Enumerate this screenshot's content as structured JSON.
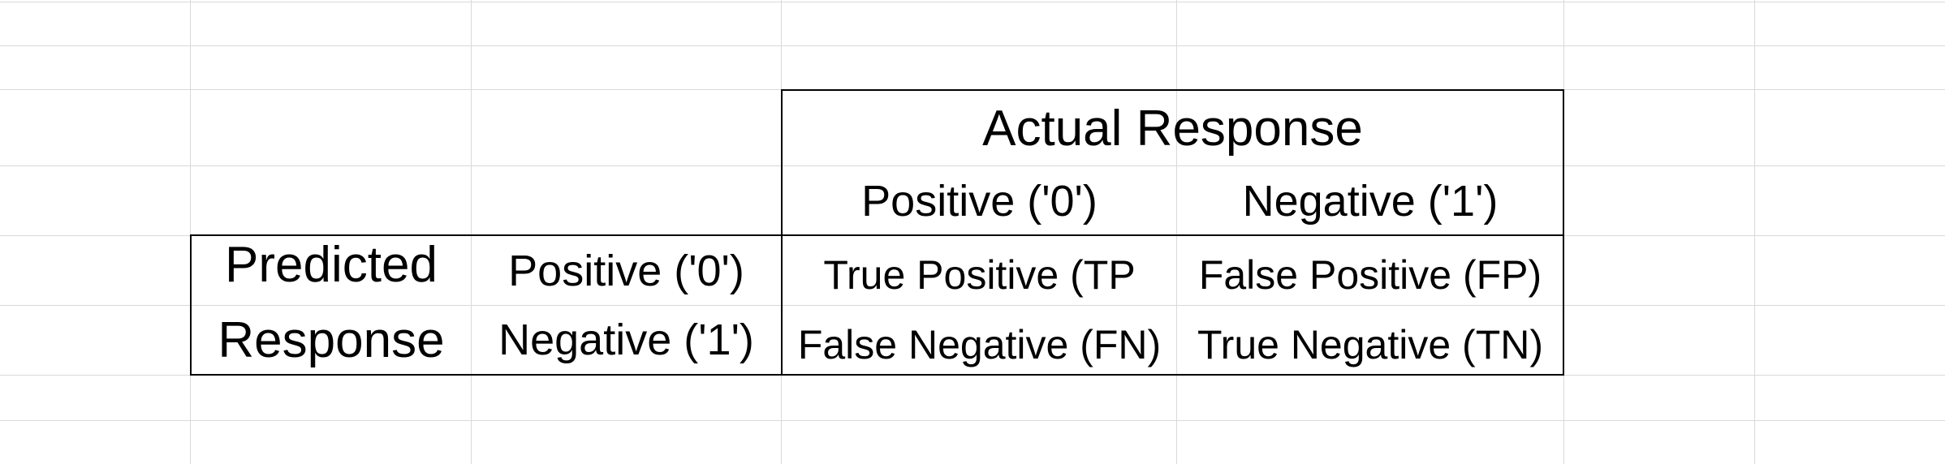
{
  "matrix": {
    "actual_header": "Actual Response",
    "actual_positive": "Positive ('0')",
    "actual_negative": "Negative ('1')",
    "predicted_header_line1": "Predicted",
    "predicted_header_line2": "Response",
    "predicted_positive": "Positive ('0')",
    "predicted_negative": "Negative ('1')",
    "true_positive": "True Positive (TP",
    "false_positive": "False Positive (FP)",
    "false_negative": "False Negative (FN)",
    "true_negative": "True Negative (TN)"
  },
  "colors": {
    "gridline": "#d9d9d9",
    "border": "#000000",
    "text": "#000000",
    "background": "#ffffff"
  }
}
